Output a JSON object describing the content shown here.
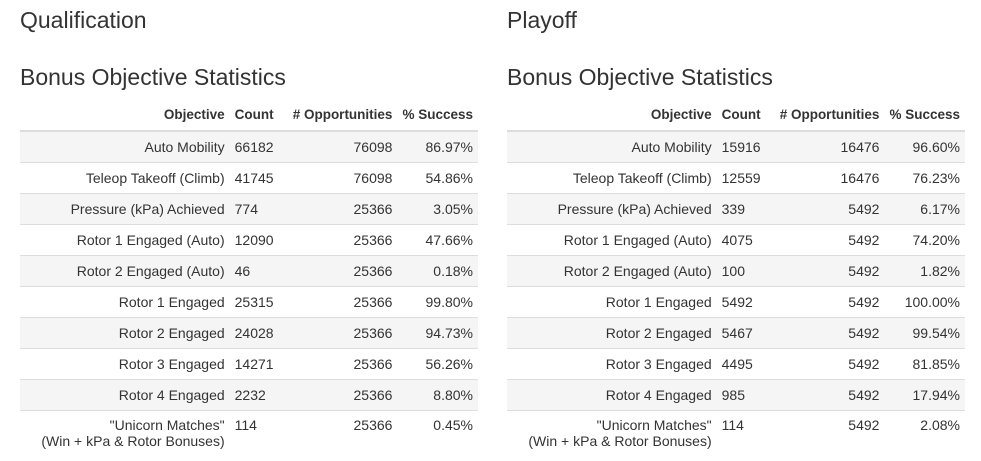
{
  "qualification": {
    "title": "Qualification",
    "subtitle": "Bonus Objective Statistics",
    "headers": [
      "Objective",
      "Count",
      "# Opportunities",
      "% Success"
    ],
    "rows": [
      {
        "objective": "Auto Mobility",
        "count": "66182",
        "opportunities": "76098",
        "success": "86.97%"
      },
      {
        "objective": "Teleop Takeoff (Climb)",
        "count": "41745",
        "opportunities": "76098",
        "success": "54.86%"
      },
      {
        "objective": "Pressure (kPa) Achieved",
        "count": "774",
        "opportunities": "25366",
        "success": "3.05%"
      },
      {
        "objective": "Rotor 1 Engaged (Auto)",
        "count": "12090",
        "opportunities": "25366",
        "success": "47.66%"
      },
      {
        "objective": "Rotor 2 Engaged (Auto)",
        "count": "46",
        "opportunities": "25366",
        "success": "0.18%"
      },
      {
        "objective": "Rotor 1 Engaged",
        "count": "25315",
        "opportunities": "25366",
        "success": "99.80%"
      },
      {
        "objective": "Rotor 2 Engaged",
        "count": "24028",
        "opportunities": "25366",
        "success": "94.73%"
      },
      {
        "objective": "Rotor 3 Engaged",
        "count": "14271",
        "opportunities": "25366",
        "success": "56.26%"
      },
      {
        "objective": "Rotor 4 Engaged",
        "count": "2232",
        "opportunities": "25366",
        "success": "8.80%"
      },
      {
        "objective": "\"Unicorn Matches\"",
        "objective_line2": "(Win + kPa & Rotor Bonuses)",
        "count": "114",
        "opportunities": "25366",
        "success": "0.45%"
      }
    ]
  },
  "playoff": {
    "title": "Playoff",
    "subtitle": "Bonus Objective Statistics",
    "headers": [
      "Objective",
      "Count",
      "# Opportunities",
      "% Success"
    ],
    "rows": [
      {
        "objective": "Auto Mobility",
        "count": "15916",
        "opportunities": "16476",
        "success": "96.60%"
      },
      {
        "objective": "Teleop Takeoff (Climb)",
        "count": "12559",
        "opportunities": "16476",
        "success": "76.23%"
      },
      {
        "objective": "Pressure (kPa) Achieved",
        "count": "339",
        "opportunities": "5492",
        "success": "6.17%"
      },
      {
        "objective": "Rotor 1 Engaged (Auto)",
        "count": "4075",
        "opportunities": "5492",
        "success": "74.20%"
      },
      {
        "objective": "Rotor 2 Engaged (Auto)",
        "count": "100",
        "opportunities": "5492",
        "success": "1.82%"
      },
      {
        "objective": "Rotor 1 Engaged",
        "count": "5492",
        "opportunities": "5492",
        "success": "100.00%"
      },
      {
        "objective": "Rotor 2 Engaged",
        "count": "5467",
        "opportunities": "5492",
        "success": "99.54%"
      },
      {
        "objective": "Rotor 3 Engaged",
        "count": "4495",
        "opportunities": "5492",
        "success": "81.85%"
      },
      {
        "objective": "Rotor 4 Engaged",
        "count": "985",
        "opportunities": "5492",
        "success": "17.94%"
      },
      {
        "objective": "\"Unicorn Matches\"",
        "objective_line2": "(Win + kPa & Rotor Bonuses)",
        "count": "114",
        "opportunities": "5492",
        "success": "2.08%"
      }
    ]
  }
}
